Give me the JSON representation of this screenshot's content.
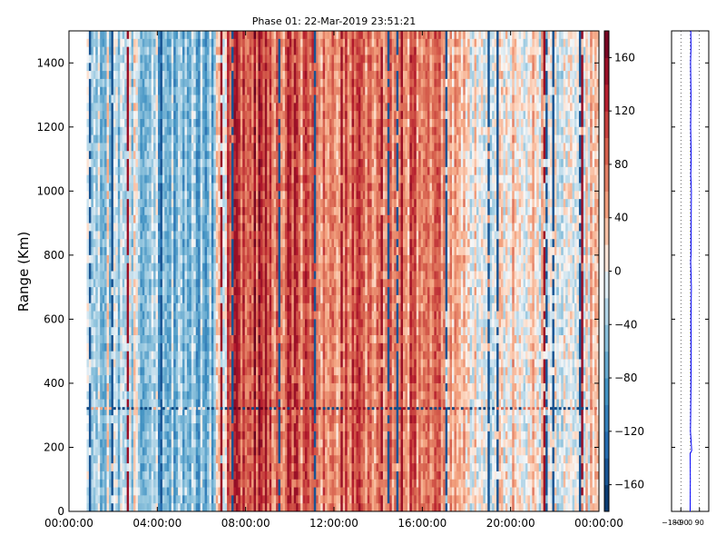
{
  "chart_data": [
    {
      "type": "heatmap",
      "title": "Phase 01: 22-Mar-2019 23:51:21",
      "xlabel": "",
      "ylabel": "Range (Km)",
      "x_range": [
        "00:00:00",
        "24:00:00"
      ],
      "y_range": [
        0,
        1500
      ],
      "x_ticks": [
        "00:00:00",
        "04:00:00",
        "08:00:00",
        "12:00:00",
        "16:00:00",
        "20:00:00",
        "00:00:00"
      ],
      "y_ticks": [
        0,
        200,
        400,
        600,
        800,
        1000,
        1200,
        1400
      ],
      "data_span_hours": [
        0.8,
        24.0
      ],
      "colorbar": {
        "colormap": "RdBu_r",
        "range": [
          -180,
          180
        ],
        "ticks": [
          -160,
          -120,
          -80,
          -40,
          0,
          40,
          80,
          120,
          160
        ]
      },
      "column_phase_profile": [
        {
          "hours": [
            0.8,
            4.0
          ],
          "mean_phase": -25
        },
        {
          "hours": [
            4.0,
            6.5
          ],
          "mean_phase": -60
        },
        {
          "hours": [
            6.5,
            7.2
          ],
          "mean_phase": -10
        },
        {
          "hours": [
            7.2,
            9.0
          ],
          "mean_phase": 110
        },
        {
          "hours": [
            9.0,
            17.0
          ],
          "mean_phase": 80
        },
        {
          "hours": [
            17.0,
            18.0
          ],
          "mean_phase": 20
        },
        {
          "hours": [
            18.0,
            24.0
          ],
          "mean_phase": 10
        }
      ],
      "horizontal_band_km": 320
    },
    {
      "type": "line",
      "title": "",
      "xlabel": "",
      "ylabel": "",
      "xlim": [
        -180,
        180
      ],
      "ylim": [
        0,
        1500
      ],
      "x_ticks": [
        "−180",
        "−90",
        "0",
        "90"
      ],
      "grid": true,
      "series": [
        {
          "range_km": [
            0,
            100,
            180,
            190,
            250,
            300,
            400,
            500,
            600,
            700,
            780,
            800,
            900,
            1000,
            1050,
            1100,
            1200,
            1300,
            1400,
            1450,
            1500
          ],
          "phase_deg": [
            0,
            2,
            0,
            15,
            3,
            5,
            8,
            10,
            8,
            12,
            5,
            8,
            10,
            12,
            6,
            10,
            5,
            8,
            4,
            8,
            6
          ]
        }
      ]
    }
  ],
  "colors": {
    "profile_line": "#0000ff"
  }
}
